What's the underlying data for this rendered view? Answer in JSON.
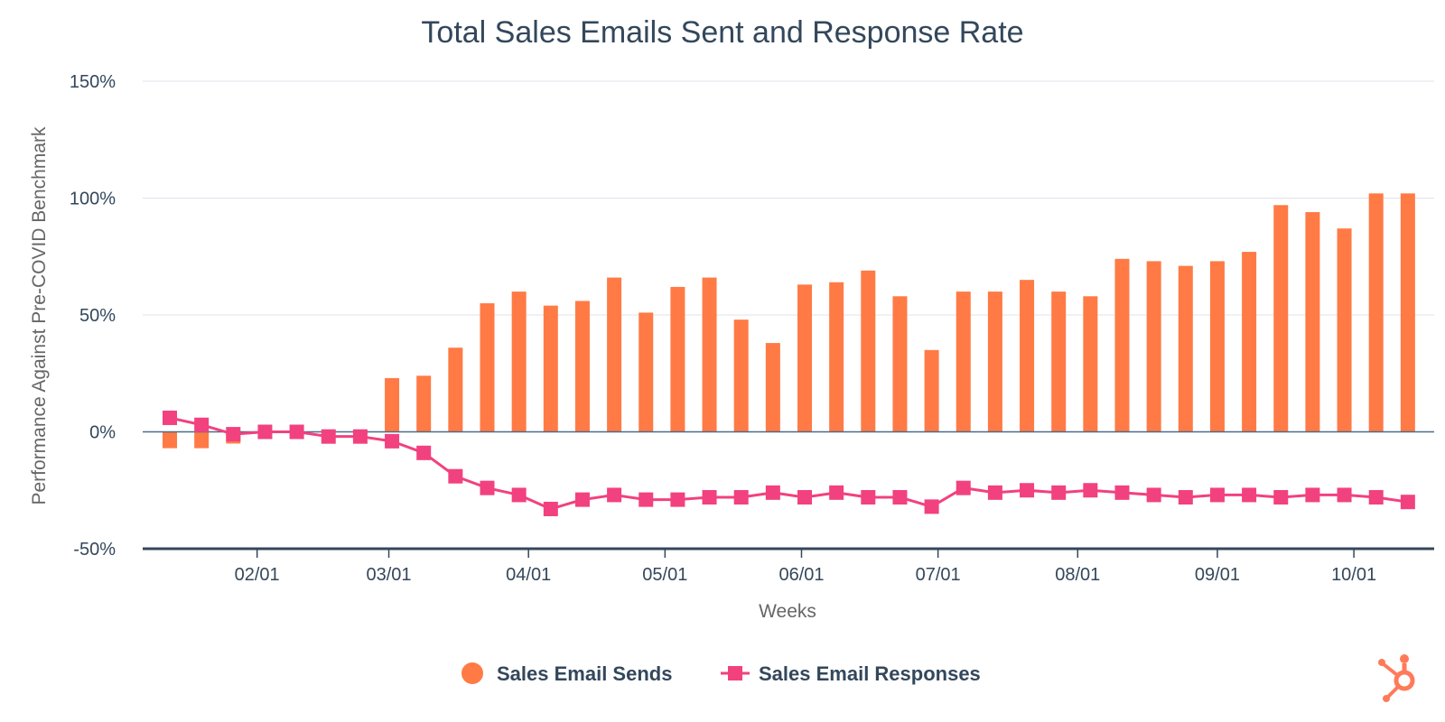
{
  "chart_data": {
    "type": "bar",
    "title": "Total Sales Emails Sent and Response Rate",
    "xlabel": "Weeks",
    "ylabel": "Performance Against Pre-COVID Benchmark",
    "ylim": [
      -50,
      150
    ],
    "y_ticks": [
      {
        "value": 150,
        "label": "150%"
      },
      {
        "value": 100,
        "label": "100%"
      },
      {
        "value": 50,
        "label": "50%"
      },
      {
        "value": 0,
        "label": "0%"
      },
      {
        "value": -50,
        "label": "-50%"
      }
    ],
    "x_ticks": [
      {
        "after_week": 2.75,
        "label": "02/01"
      },
      {
        "after_week": 6.9,
        "label": "03/01"
      },
      {
        "after_week": 11.3,
        "label": "04/01"
      },
      {
        "after_week": 15.6,
        "label": "05/01"
      },
      {
        "after_week": 19.9,
        "label": "06/01"
      },
      {
        "after_week": 24.2,
        "label": "07/01"
      },
      {
        "after_week": 28.6,
        "label": "08/01"
      },
      {
        "after_week": 33.0,
        "label": "09/01"
      },
      {
        "after_week": 37.3,
        "label": "10/01"
      }
    ],
    "grid": true,
    "legend_position": "bottom-center",
    "week_count": 40,
    "series": [
      {
        "name": "Sales Email Sends",
        "type": "bar",
        "color": "#ff7a45",
        "values": [
          -7,
          -7,
          -5,
          null,
          null,
          null,
          null,
          23,
          24,
          36,
          55,
          60,
          54,
          56,
          66,
          51,
          62,
          66,
          48,
          38,
          63,
          64,
          69,
          58,
          35,
          60,
          60,
          65,
          60,
          58,
          74,
          73,
          71,
          73,
          77,
          97,
          94,
          87,
          102,
          102
        ]
      },
      {
        "name": "Sales Email Responses",
        "type": "line",
        "color": "#f2417f",
        "values": [
          6,
          3,
          -1,
          0,
          0,
          -2,
          -2,
          -4,
          -9,
          -19,
          -24,
          -27,
          -33,
          -29,
          -27,
          -29,
          -29,
          -28,
          -28,
          -26,
          -28,
          -26,
          -28,
          -28,
          -32,
          -24,
          -26,
          -25,
          -26,
          -25,
          -26,
          -27,
          -28,
          -27,
          -27,
          -28,
          -27,
          -27,
          -28,
          -30
        ]
      }
    ]
  },
  "brand": {
    "logo_icon": "hubspot-sprocket-icon",
    "color": "#ff7a59"
  }
}
